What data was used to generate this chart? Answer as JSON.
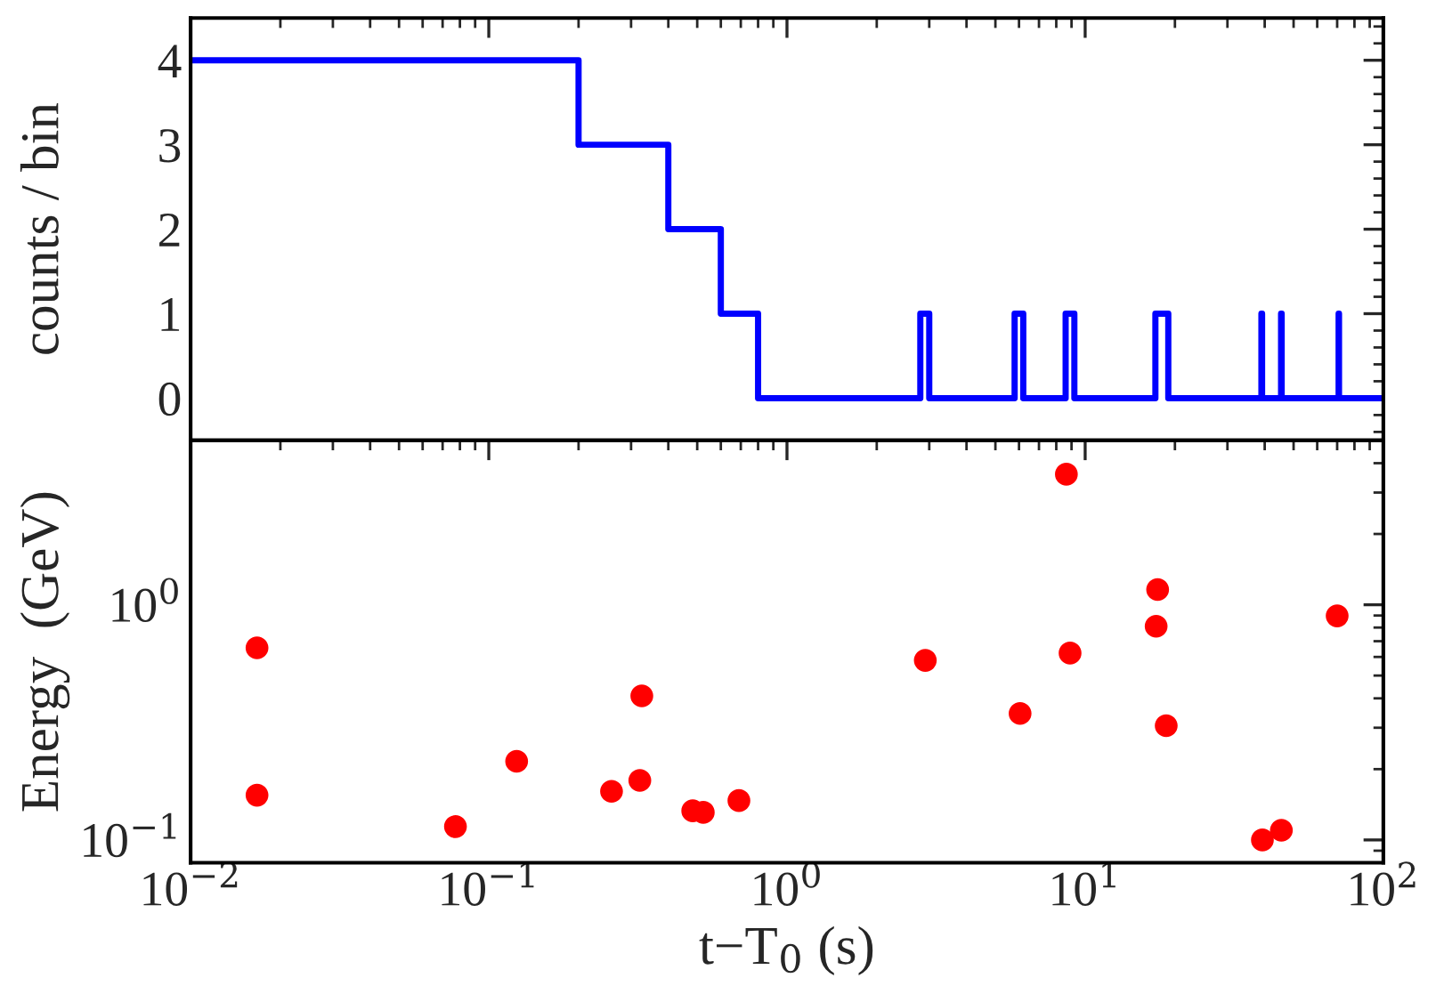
{
  "chart_data": [
    {
      "type": "step",
      "ylabel": "counts / bin",
      "log": "x",
      "xlim": [
        0.01,
        100
      ],
      "xticks": [
        0.01,
        0.1,
        1,
        10,
        100
      ],
      "ylim": [
        -0.5,
        4.5
      ],
      "yticks": [
        0,
        1,
        2,
        3,
        4
      ],
      "tick_labels": "y",
      "grid": false,
      "legend": false,
      "marker": "none",
      "line_style": "solid",
      "series": [
        {
          "color": "#0000ff",
          "x": [
            0.01,
            0.2,
            0.4,
            0.6,
            0.8,
            2.8,
            3.0,
            5.8,
            6.2,
            8.6,
            9.2,
            17.2,
            19.0,
            39.0,
            39.2,
            45.4,
            45.6,
            70.8,
            71.0,
            100
          ],
          "values": [
            4,
            3,
            2,
            1,
            0,
            1,
            0,
            1,
            0,
            1,
            0,
            1,
            0,
            1,
            0,
            1,
            0,
            1,
            0,
            0
          ]
        }
      ]
    },
    {
      "type": "scatter",
      "xlabel": "t−T$_{0}$ (s)",
      "ylabel": "Energy  (GeV)",
      "log": "xy",
      "xlim": [
        0.01,
        100
      ],
      "xticks": [
        {
          "value": 0.01,
          "label": "10$^{−2}$"
        },
        {
          "value": 0.1,
          "label": "10$^{−1}$"
        },
        {
          "value": 1,
          "label": "10$^{0}$"
        },
        {
          "value": 10,
          "label": "10$^{1}$"
        },
        {
          "value": 100,
          "label": "10$^{2}$"
        }
      ],
      "ylim": [
        0.08,
        5
      ],
      "yticks": [
        {
          "value": 0.1,
          "label": "10$^{−1}$"
        },
        {
          "value": 1,
          "label": "10$^{0}$"
        }
      ],
      "grid": false,
      "legend": false,
      "marker": "circle",
      "series": [
        {
          "color": "#ff0000",
          "x": [
            0.0167,
            0.0167,
            0.0773,
            0.124,
            0.258,
            0.321,
            0.326,
            0.483,
            0.524,
            0.69,
            2.91,
            6.05,
            8.65,
            8.9,
            17.3,
            17.5,
            18.7,
            39.3,
            45.5,
            70.0
          ],
          "values": [
            0.656,
            0.155,
            0.114,
            0.216,
            0.161,
            0.179,
            0.41,
            0.133,
            0.131,
            0.147,
            0.58,
            0.345,
            3.59,
            0.623,
            0.81,
            1.16,
            0.306,
            0.1,
            0.11,
            0.897
          ]
        }
      ]
    }
  ]
}
